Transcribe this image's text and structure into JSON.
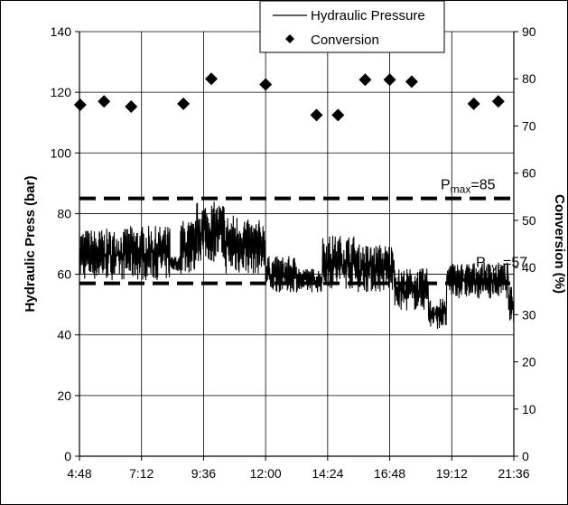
{
  "chart_data": {
    "type": "line",
    "xlabel": "",
    "ylabel": "Hydraulic Press (bar)",
    "y2label": "Conversion (%)",
    "x_ticks": [
      "4:48",
      "7:12",
      "9:36",
      "12:00",
      "14:24",
      "16:48",
      "19:12",
      "21:36"
    ],
    "x_tick_hours": [
      4.8,
      7.2,
      9.6,
      12.0,
      14.4,
      16.8,
      19.2,
      21.6
    ],
    "xlim": [
      4.8,
      21.6
    ],
    "ylim": [
      0,
      140
    ],
    "y_ticks": [
      "0",
      "20",
      "40",
      "60",
      "80",
      "100",
      "120",
      "140"
    ],
    "y2lim": [
      0,
      90
    ],
    "y2_ticks": [
      "0",
      "10",
      "20",
      "30",
      "40",
      "50",
      "60",
      "70",
      "80",
      "90"
    ],
    "grid": true,
    "legend": {
      "position": "top-right",
      "entries": [
        "Hydraulic Pressure",
        "Conversion"
      ]
    },
    "series": [
      {
        "name": "Hydraulic Pressure",
        "style": "line",
        "axis": "left",
        "segments": [
          {
            "t_start": 4.8,
            "t_end": 6.6,
            "low": 58,
            "high": 75
          },
          {
            "t_start": 6.6,
            "t_end": 8.3,
            "low": 58,
            "high": 76
          },
          {
            "t_start": 8.3,
            "t_end": 8.7,
            "low": 61,
            "high": 66
          },
          {
            "t_start": 8.7,
            "t_end": 9.3,
            "low": 60,
            "high": 78
          },
          {
            "t_start": 9.3,
            "t_end": 10.4,
            "low": 64,
            "high": 84
          },
          {
            "t_start": 10.4,
            "t_end": 11.2,
            "low": 60,
            "high": 80
          },
          {
            "t_start": 11.2,
            "t_end": 12.0,
            "low": 60,
            "high": 78
          },
          {
            "t_start": 12.0,
            "t_end": 13.3,
            "low": 54,
            "high": 66
          },
          {
            "t_start": 13.3,
            "t_end": 14.2,
            "low": 54,
            "high": 62
          },
          {
            "t_start": 14.2,
            "t_end": 15.5,
            "low": 55,
            "high": 73
          },
          {
            "t_start": 15.5,
            "t_end": 17.0,
            "low": 54,
            "high": 70
          },
          {
            "t_start": 17.0,
            "t_end": 18.3,
            "low": 48,
            "high": 62
          },
          {
            "t_start": 18.3,
            "t_end": 19.0,
            "low": 42,
            "high": 52
          },
          {
            "t_start": 19.0,
            "t_end": 21.4,
            "low": 52,
            "high": 64
          },
          {
            "t_start": 21.4,
            "t_end": 21.6,
            "low": 44,
            "high": 56
          }
        ]
      },
      {
        "name": "Conversion",
        "style": "marker-diamond",
        "axis": "right",
        "x": [
          4.83,
          5.75,
          6.8,
          8.82,
          9.9,
          12.0,
          13.97,
          14.8,
          15.85,
          16.8,
          17.65,
          20.05,
          21.0
        ],
        "y": [
          74.5,
          75.2,
          74.1,
          74.7,
          80.0,
          78.8,
          72.3,
          72.3,
          79.8,
          79.8,
          79.4,
          74.7,
          75.2
        ]
      }
    ],
    "reference_lines": [
      {
        "name": "P_max",
        "value": 85,
        "axis": "left",
        "style": "dashed",
        "label_main": "P",
        "label_sub": "max",
        "label_tail": "=85"
      },
      {
        "name": "P_ave",
        "value": 57,
        "axis": "left",
        "style": "dashed",
        "label_main": "P",
        "label_sub": "ave",
        "label_tail": "=57"
      }
    ]
  }
}
